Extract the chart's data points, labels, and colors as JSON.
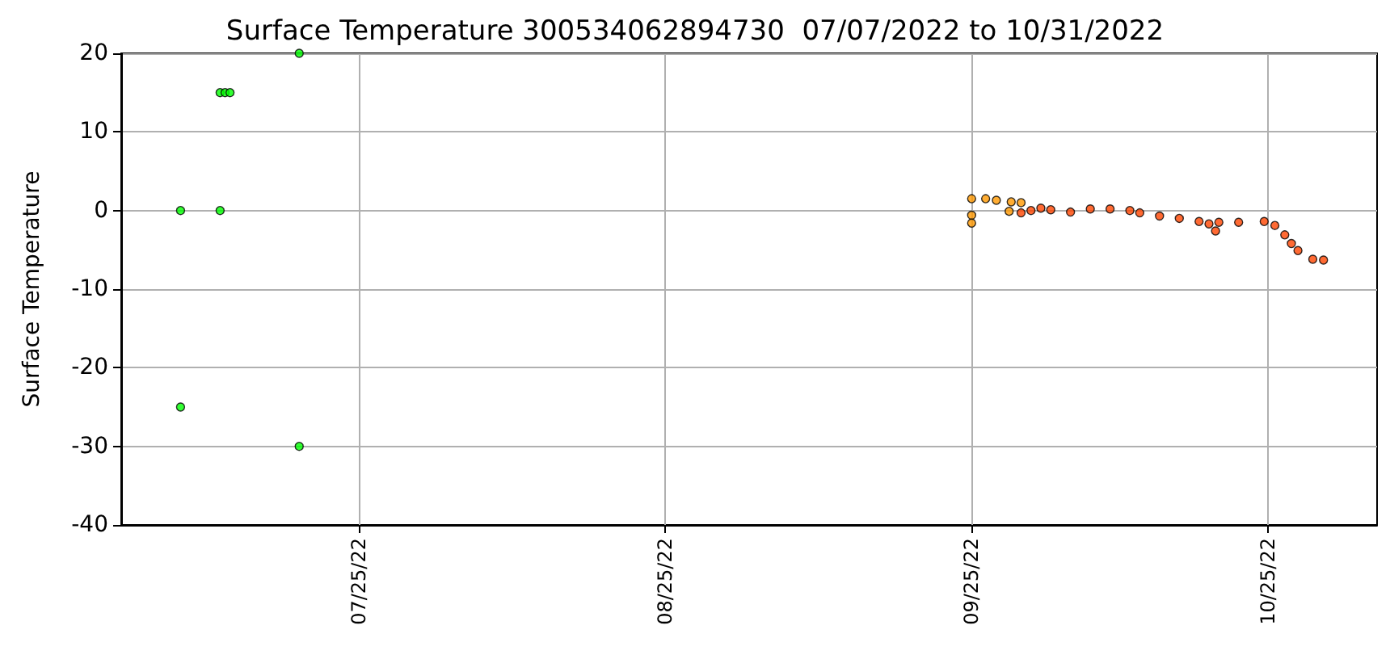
{
  "chart_data": {
    "type": "scatter",
    "title": "Surface Temperature 300534062894730  07/07/2022 to 10/31/2022",
    "ylabel": "Surface Temperature",
    "xlim": [
      "2022-07-01",
      "2022-11-05"
    ],
    "xticks": [
      {
        "value": "2022-07-25",
        "label": "07/25/22"
      },
      {
        "value": "2022-08-25",
        "label": "08/25/22"
      },
      {
        "value": "2022-09-25",
        "label": "09/25/22"
      },
      {
        "value": "2022-10-25",
        "label": "10/25/22"
      }
    ],
    "ylim": [
      -40,
      20
    ],
    "yticks": [
      -40,
      -30,
      -20,
      -10,
      0,
      10,
      20
    ],
    "grid": true,
    "marker": "circle",
    "series": [
      {
        "color": "#00ff00",
        "x": [
          "2022-07-07",
          "2022-07-07",
          "2022-07-11",
          "2022-07-11",
          "2022-07-11T12:00",
          "2022-07-12",
          "2022-07-19",
          "2022-07-19"
        ],
        "values": [
          0,
          -25,
          0,
          15,
          15,
          15,
          -30,
          20
        ]
      },
      {
        "color": "#ff9900",
        "x": [
          "2022-09-25",
          "2022-09-25",
          "2022-09-25",
          "2022-09-26T10:00",
          "2022-09-27T12:00",
          "2022-09-28T19:00",
          "2022-09-29",
          "2022-09-30"
        ],
        "values": [
          1.5,
          -0.6,
          -1.6,
          1.5,
          1.3,
          -0.1,
          1.1,
          1.0
        ]
      },
      {
        "color": "#ff4500",
        "x": [
          "2022-09-30",
          "2022-10-01",
          "2022-10-02",
          "2022-10-03",
          "2022-10-05",
          "2022-10-07",
          "2022-10-09",
          "2022-10-11",
          "2022-10-12",
          "2022-10-14",
          "2022-10-16",
          "2022-10-18",
          "2022-10-19",
          "2022-10-19T16:00",
          "2022-10-20",
          "2022-10-22",
          "2022-10-24T14:00",
          "2022-10-25T16:00",
          "2022-10-26T16:00",
          "2022-10-27T08:00",
          "2022-10-28",
          "2022-10-29T12:00",
          "2022-10-30T14:00"
        ],
        "values": [
          -0.3,
          0,
          0.3,
          0.1,
          -0.2,
          0.2,
          0.2,
          0,
          -0.3,
          -0.7,
          -1.0,
          -1.4,
          -1.7,
          -2.6,
          -1.5,
          -1.5,
          -1.4,
          -1.9,
          -3.1,
          -4.2,
          -5.1,
          -6.2,
          -6.3
        ]
      }
    ]
  }
}
